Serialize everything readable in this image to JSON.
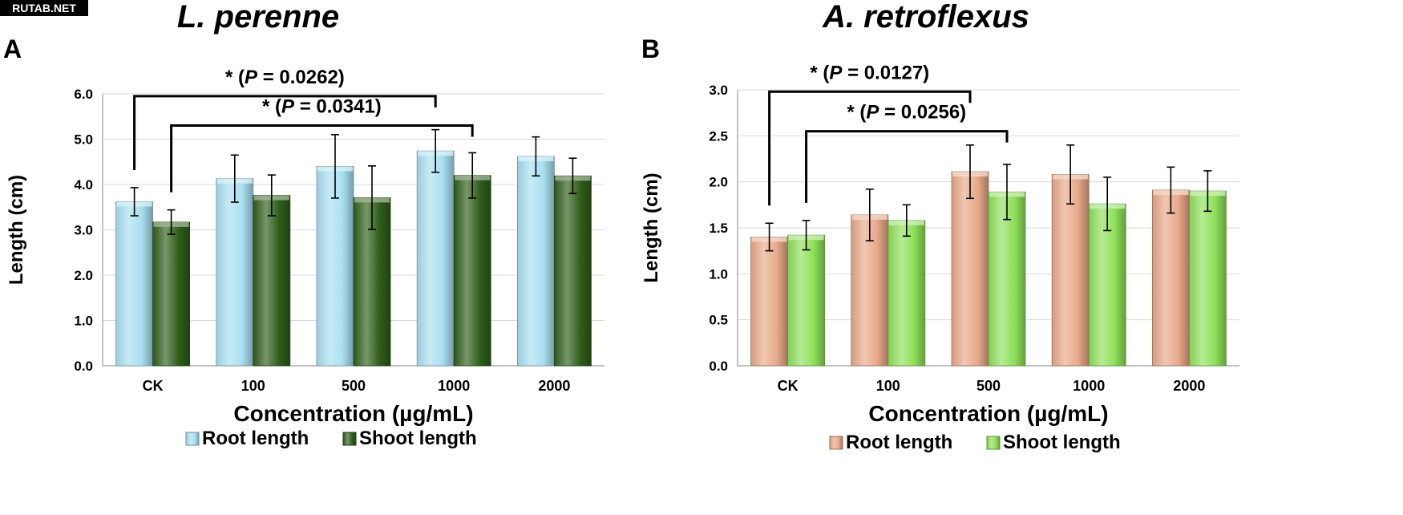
{
  "watermark": "RUTAB.NET",
  "legend_labels": {
    "root": "Root length",
    "shoot": "Shoot length"
  },
  "chart_data": [
    {
      "panel_label": "A",
      "type": "bar",
      "title": "L. perenne",
      "xlabel": "Concentration (µg/mL)",
      "ylabel": "Length (cm)",
      "ylim": [
        0,
        6
      ],
      "yticks": [
        "0.0",
        "1.0",
        "2.0",
        "3.0",
        "4.0",
        "5.0",
        "6.0"
      ],
      "categories": [
        "CK",
        "100",
        "500",
        "1000",
        "2000"
      ],
      "grid": true,
      "legend_position": "bottom",
      "colors": {
        "root": "#a9dff0",
        "shoot": "#2f5e1b"
      },
      "series": [
        {
          "name": "Root length",
          "values": [
            3.62,
            4.13,
            4.4,
            4.74,
            4.62
          ],
          "errors": [
            0.31,
            0.52,
            0.7,
            0.47,
            0.43
          ]
        },
        {
          "name": "Shoot length",
          "values": [
            3.17,
            3.76,
            3.71,
            4.2,
            4.19
          ],
          "errors": [
            0.27,
            0.45,
            0.7,
            0.5,
            0.39
          ]
        }
      ],
      "annotations": [
        {
          "text_star": "* (",
          "text_p": "P",
          "text_rest": " = 0.0262)",
          "from_category": 0,
          "from_series": 0,
          "to_category": 3,
          "to_series": 0,
          "bracket_y": 5.95
        },
        {
          "text_star": "* (",
          "text_p": "P",
          "text_rest": " = 0.0341)",
          "from_category": 0,
          "from_series": 1,
          "to_category": 3,
          "to_series": 1,
          "bracket_y": 5.3
        }
      ]
    },
    {
      "panel_label": "B",
      "type": "bar",
      "title": "A. retroflexus",
      "xlabel": "Concentration (µg/mL)",
      "ylabel": "Length (cm)",
      "ylim": [
        0,
        3
      ],
      "yticks": [
        "0.0",
        "0.5",
        "1.0",
        "1.5",
        "2.0",
        "2.5",
        "3.0"
      ],
      "categories": [
        "CK",
        "100",
        "500",
        "1000",
        "2000"
      ],
      "grid": true,
      "legend_position": "bottom",
      "colors": {
        "root": "#e8a98a",
        "shoot": "#8fe05a"
      },
      "series": [
        {
          "name": "Root length",
          "values": [
            1.4,
            1.64,
            2.11,
            2.08,
            1.91
          ],
          "errors": [
            0.15,
            0.28,
            0.29,
            0.32,
            0.25
          ]
        },
        {
          "name": "Shoot length",
          "values": [
            1.42,
            1.58,
            1.89,
            1.76,
            1.9
          ],
          "errors": [
            0.16,
            0.17,
            0.3,
            0.29,
            0.22
          ]
        }
      ],
      "annotations": [
        {
          "text_star": "* (",
          "text_p": "P",
          "text_rest": " = 0.0127)",
          "from_category": 0,
          "from_series": 0,
          "to_category": 2,
          "to_series": 0,
          "bracket_y": 2.98
        },
        {
          "text_star": "* (",
          "text_p": "P",
          "text_rest": " = 0.0256)",
          "from_category": 0,
          "from_series": 1,
          "to_category": 2,
          "to_series": 1,
          "bracket_y": 2.55
        }
      ]
    }
  ]
}
